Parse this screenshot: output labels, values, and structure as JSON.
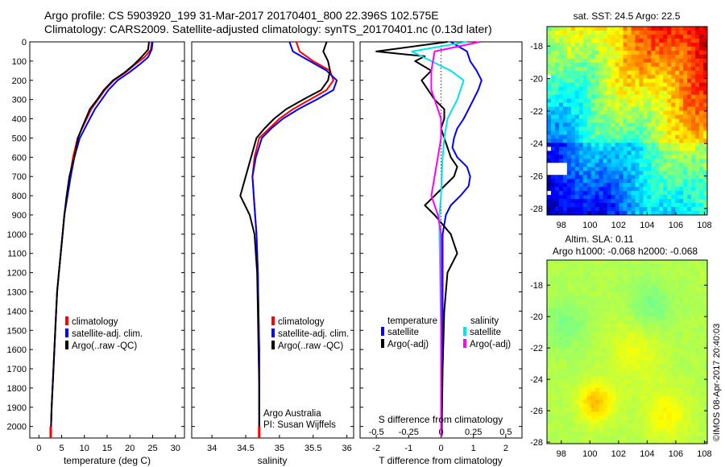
{
  "header": {
    "line1": "Argo profile: CS 5903920_199 31-Mar-2017 20170401_800 22.396S 102.575E",
    "line2": "Climatology: CARS2009. Satellite-adjusted climatology: synTS_20170401.nc (0.13d later)"
  },
  "colors": {
    "climatology": "#ff0000",
    "satellite": "#0000ff",
    "argo": "#000000",
    "sal_sat": "#00e5e5",
    "sal_argo": "#ff00ff"
  },
  "depth_ticks": [
    0,
    100,
    200,
    300,
    400,
    500,
    600,
    700,
    800,
    900,
    1000,
    1100,
    1200,
    1300,
    1400,
    1500,
    1600,
    1700,
    1800,
    1900,
    2000
  ],
  "chart_data": [
    {
      "id": "temp",
      "type": "line",
      "xlabel": "temperature (deg C)",
      "xlim": [
        -2,
        32
      ],
      "ylim": [
        0,
        2060
      ],
      "y_inverted": true,
      "xticks": [
        "0",
        "5",
        "10",
        "15",
        "20",
        "25",
        "30"
      ],
      "xtick_values": [
        0,
        5,
        10,
        15,
        20,
        25,
        30
      ],
      "legend": [
        "climatology",
        "satellite-adj. clim.",
        "Argo(..raw -QC)"
      ],
      "series": [
        {
          "name": "climatology",
          "color": "climatology",
          "x": [
            24.8,
            24.6,
            23.2,
            21.0,
            19.0,
            16.5,
            14.5,
            13.0,
            11.5,
            10.5,
            9.5,
            8.5,
            7.5,
            6.8,
            6.2,
            5.6,
            5.2,
            4.8,
            4.4,
            4.0,
            3.6,
            3.2,
            2.8,
            2.6
          ],
          "y": [
            0,
            40,
            80,
            120,
            160,
            200,
            250,
            300,
            350,
            400,
            450,
            500,
            600,
            700,
            800,
            900,
            1000,
            1100,
            1200,
            1300,
            1500,
            1700,
            1900,
            2050
          ]
        },
        {
          "name": "satellite-adj. clim.",
          "color": "satellite",
          "x": [
            25.0,
            24.8,
            24.0,
            22.0,
            19.8,
            17.3,
            15.3,
            13.8,
            12.3,
            11.2,
            10.1,
            9.0,
            7.8,
            7.0,
            6.3,
            5.6,
            5.2,
            4.8,
            4.4,
            4.0,
            3.6,
            3.2,
            2.8,
            2.6
          ],
          "y": [
            0,
            40,
            80,
            120,
            160,
            200,
            250,
            300,
            350,
            400,
            450,
            500,
            600,
            700,
            800,
            900,
            1000,
            1100,
            1200,
            1300,
            1500,
            1700,
            1900,
            2050
          ]
        },
        {
          "name": "Argo(..raw -QC)",
          "color": "argo",
          "x": [
            24.2,
            24.0,
            22.5,
            20.8,
            18.8,
            16.3,
            14.3,
            12.8,
            11.2,
            10.3,
            9.4,
            8.6,
            7.8,
            6.7,
            6.1,
            5.6,
            5.2,
            4.8,
            4.4,
            4.0,
            3.6,
            3.2,
            2.8,
            2.6
          ],
          "y": [
            0,
            40,
            80,
            120,
            160,
            200,
            250,
            300,
            350,
            400,
            450,
            500,
            600,
            700,
            800,
            900,
            1000,
            1100,
            1200,
            1300,
            1500,
            1700,
            1900,
            2050
          ]
        }
      ]
    },
    {
      "id": "sal",
      "type": "line",
      "xlabel": "salinity",
      "xlim": [
        33.7,
        36.1
      ],
      "ylim": [
        0,
        2060
      ],
      "y_inverted": true,
      "xticks": [
        "34",
        "34.5",
        "35",
        "35.5",
        "36"
      ],
      "xtick_values": [
        34,
        34.5,
        35,
        35.5,
        36
      ],
      "legend": [
        "climatology",
        "satellite-adj. clim.",
        "Argo(..raw -QC)"
      ],
      "annotations": [
        "Argo Australia",
        "PI: Susan Wijffels"
      ],
      "series": [
        {
          "name": "climatology",
          "color": "climatology",
          "x": [
            35.25,
            35.3,
            35.5,
            35.75,
            35.8,
            35.7,
            35.45,
            35.2,
            35.0,
            34.85,
            34.7,
            34.63,
            34.6,
            34.62,
            34.64,
            34.66,
            34.68,
            34.69,
            34.7,
            34.7,
            34.7
          ],
          "y": [
            0,
            50,
            100,
            150,
            200,
            250,
            300,
            350,
            400,
            450,
            500,
            600,
            700,
            800,
            900,
            1000,
            1200,
            1400,
            1600,
            1800,
            2050
          ]
        },
        {
          "name": "satellite-adj. clim.",
          "color": "satellite",
          "x": [
            35.15,
            35.2,
            35.45,
            35.7,
            35.85,
            35.8,
            35.55,
            35.28,
            35.05,
            34.88,
            34.74,
            34.65,
            34.6,
            34.62,
            34.64,
            34.66,
            34.68,
            34.69,
            34.7,
            34.7,
            34.7
          ],
          "y": [
            0,
            50,
            100,
            150,
            200,
            250,
            300,
            350,
            400,
            450,
            500,
            600,
            700,
            800,
            900,
            1000,
            1200,
            1400,
            1600,
            1800,
            2050
          ]
        },
        {
          "name": "Argo(..raw -QC)",
          "color": "argo",
          "x": [
            35.7,
            35.65,
            35.72,
            35.75,
            35.72,
            35.62,
            35.35,
            35.1,
            34.92,
            34.78,
            34.66,
            34.58,
            34.5,
            34.42,
            34.56,
            34.63,
            34.67,
            34.68,
            34.69,
            34.7,
            34.7
          ],
          "y": [
            0,
            50,
            100,
            150,
            200,
            250,
            300,
            350,
            400,
            450,
            500,
            600,
            700,
            800,
            900,
            1000,
            1200,
            1400,
            1600,
            1800,
            2050
          ]
        }
      ]
    },
    {
      "id": "diff",
      "type": "line",
      "xlabel": "T difference from climatology",
      "xlabel_top": "S difference from climatology",
      "xlim": [
        -2.5,
        2.5
      ],
      "ylim": [
        0,
        2060
      ],
      "y_inverted": true,
      "xticks": [
        "-2",
        "-1",
        "0",
        "1",
        "2"
      ],
      "xtick_values": [
        -2,
        -1,
        0,
        1,
        2
      ],
      "xticks_top": [
        "-0.5",
        "-0.25",
        "0",
        "0.25",
        "0.5"
      ],
      "xtick_top_values": [
        -2,
        -1,
        0,
        1,
        2
      ],
      "legend_temperature": {
        "heading": "temperature",
        "items": [
          "satellite",
          "Argo(-adj)"
        ]
      },
      "legend_salinity": {
        "heading": "salinity",
        "items": [
          "satellite",
          "Argo(-adj)"
        ]
      },
      "series": [
        {
          "name": "satellite",
          "group": "temperature",
          "color": "satellite",
          "x": [
            0.3,
            0.8,
            0.9,
            1.1,
            1.25,
            1.15,
            1.0,
            0.85,
            0.7,
            0.5,
            0.4,
            0.35,
            0.5,
            0.8,
            0.9,
            0.85,
            0.6,
            0.3,
            0.15,
            0.05,
            0.05,
            0.05,
            0.02,
            0.02
          ],
          "y": [
            0,
            50,
            100,
            150,
            200,
            250,
            300,
            350,
            400,
            450,
            500,
            550,
            600,
            650,
            700,
            750,
            800,
            850,
            900,
            1000,
            1200,
            1500,
            1800,
            2050
          ]
        },
        {
          "name": "Argo(-adj)",
          "group": "temperature",
          "color": "argo",
          "x": [
            0.2,
            -2.0,
            -0.5,
            -0.8,
            -0.3,
            -0.6,
            -0.4,
            -0.2,
            0.1,
            0.1,
            0.0,
            0.1,
            0.3,
            0.5,
            0.4,
            0.1,
            -0.2,
            -0.5,
            -0.2,
            0.3,
            0.5,
            0.2,
            0.1,
            0.05,
            0.02
          ],
          "y": [
            0,
            50,
            75,
            100,
            150,
            200,
            250,
            300,
            350,
            400,
            450,
            500,
            600,
            650,
            700,
            750,
            800,
            850,
            900,
            1000,
            1100,
            1200,
            1400,
            1700,
            2050
          ]
        },
        {
          "name": "satellite",
          "group": "salinity",
          "color": "sal_sat",
          "x": [
            0.8,
            -0.9,
            -0.3,
            0.3,
            0.7,
            0.6,
            0.5,
            0.35,
            0.2,
            0.1,
            0.05,
            0.02,
            0.0,
            -0.05,
            -0.05,
            0.0,
            0.0
          ],
          "y": [
            0,
            50,
            100,
            150,
            200,
            250,
            300,
            350,
            400,
            500,
            600,
            700,
            800,
            900,
            1000,
            1500,
            2050
          ]
        },
        {
          "name": "Argo(-adj)",
          "group": "salinity",
          "color": "sal_argo",
          "x": [
            1.2,
            -0.2,
            -0.3,
            -0.3,
            -0.2,
            -0.1,
            0.0,
            0.0,
            -0.1,
            -0.2,
            -0.3,
            -0.2,
            -0.1,
            0.0,
            0.0
          ],
          "y": [
            0,
            50,
            150,
            250,
            300,
            350,
            400,
            500,
            600,
            700,
            800,
            850,
            900,
            1000,
            2050
          ]
        }
      ]
    }
  ],
  "maps": {
    "sst": {
      "title": "sat. SST: 24.5 Argo: 22.5",
      "yticks": [
        "-18",
        "-20",
        "-22",
        "-24",
        "-26",
        "-28"
      ],
      "ytick_values": [
        -18,
        -20,
        -22,
        -24,
        -26,
        -28
      ],
      "xticks": [
        "98",
        "100",
        "102",
        "104",
        "106",
        "108"
      ],
      "xtick_values": [
        98,
        100,
        102,
        104,
        106,
        108
      ],
      "lon_range": [
        97,
        108.2
      ],
      "lat_range": [
        -16.8,
        -28.4
      ]
    },
    "sla": {
      "title_line1": "Altim. SLA: 0.11",
      "title_line2": "Argo h1000: -0.068 h2000: -0.068",
      "yticks": [
        "-18",
        "-20",
        "-22",
        "-24",
        "-26",
        "-28"
      ],
      "ytick_values": [
        -18,
        -20,
        -22,
        -24,
        -26,
        -28
      ],
      "xticks": [
        "98",
        "100",
        "102",
        "104",
        "106",
        "108"
      ],
      "xtick_values": [
        98,
        100,
        102,
        104,
        106,
        108
      ],
      "lon_range": [
        97,
        108.2
      ],
      "lat_range": [
        -16.4,
        -28.1
      ]
    },
    "credit": "©IMOS 08-Apr-2017 20:40:03",
    "argo_location": {
      "lon": 102.575,
      "lat": -22.396
    }
  }
}
